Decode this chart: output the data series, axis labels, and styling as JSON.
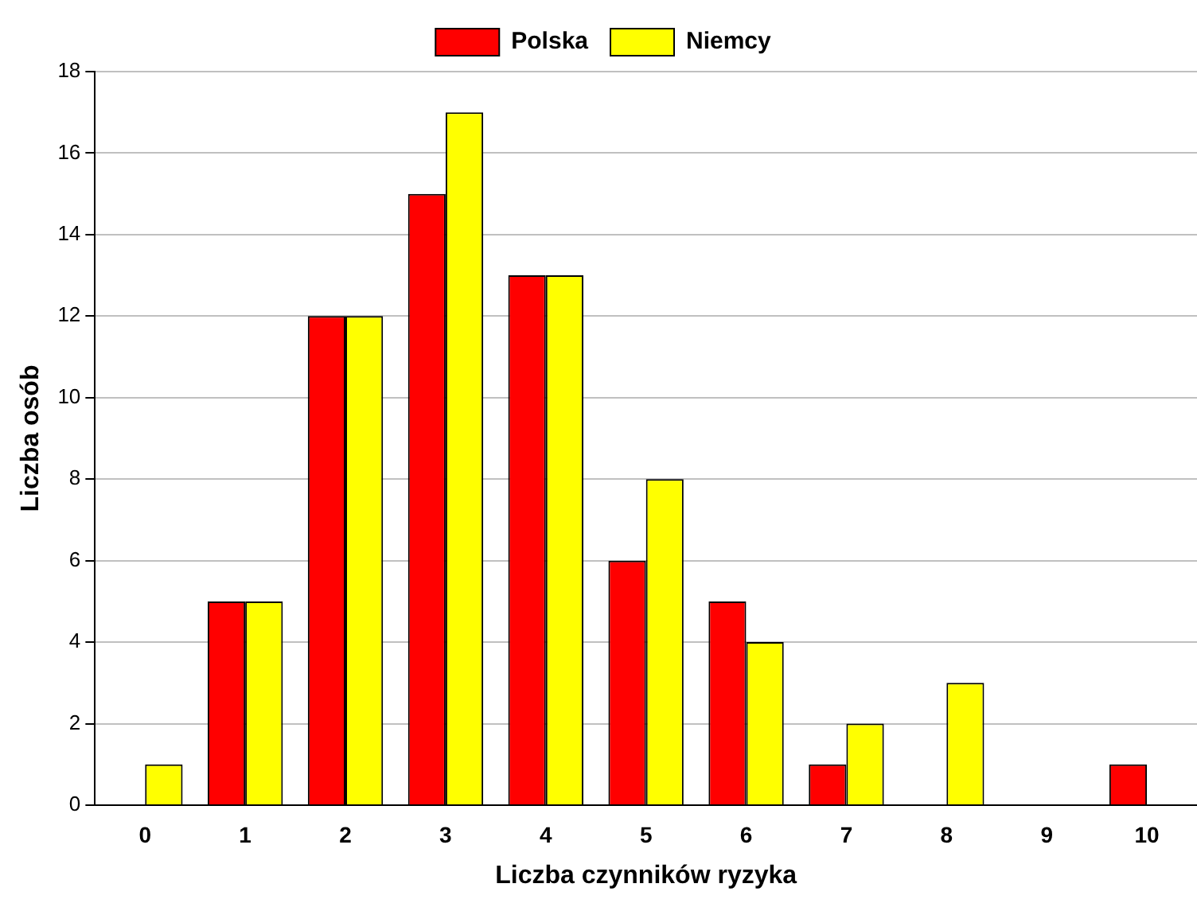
{
  "chart_data": {
    "type": "bar",
    "xlabel": "Liczba czynników ryzyka",
    "ylabel": "Liczba osób",
    "categories": [
      "0",
      "1",
      "2",
      "3",
      "4",
      "5",
      "6",
      "7",
      "8",
      "9",
      "10"
    ],
    "series": [
      {
        "name": "Polska",
        "color": "#ff0000",
        "values": [
          0,
          5,
          12,
          15,
          13,
          6,
          5,
          1,
          0,
          0,
          1
        ]
      },
      {
        "name": "Niemcy",
        "color": "#ffff00",
        "values": [
          1,
          5,
          12,
          17,
          13,
          8,
          4,
          2,
          3,
          0,
          0
        ]
      }
    ],
    "ylim": [
      0,
      18
    ],
    "yticks": [
      0,
      2,
      4,
      6,
      8,
      10,
      12,
      14,
      16,
      18
    ],
    "grid": "y",
    "legend": "top"
  }
}
